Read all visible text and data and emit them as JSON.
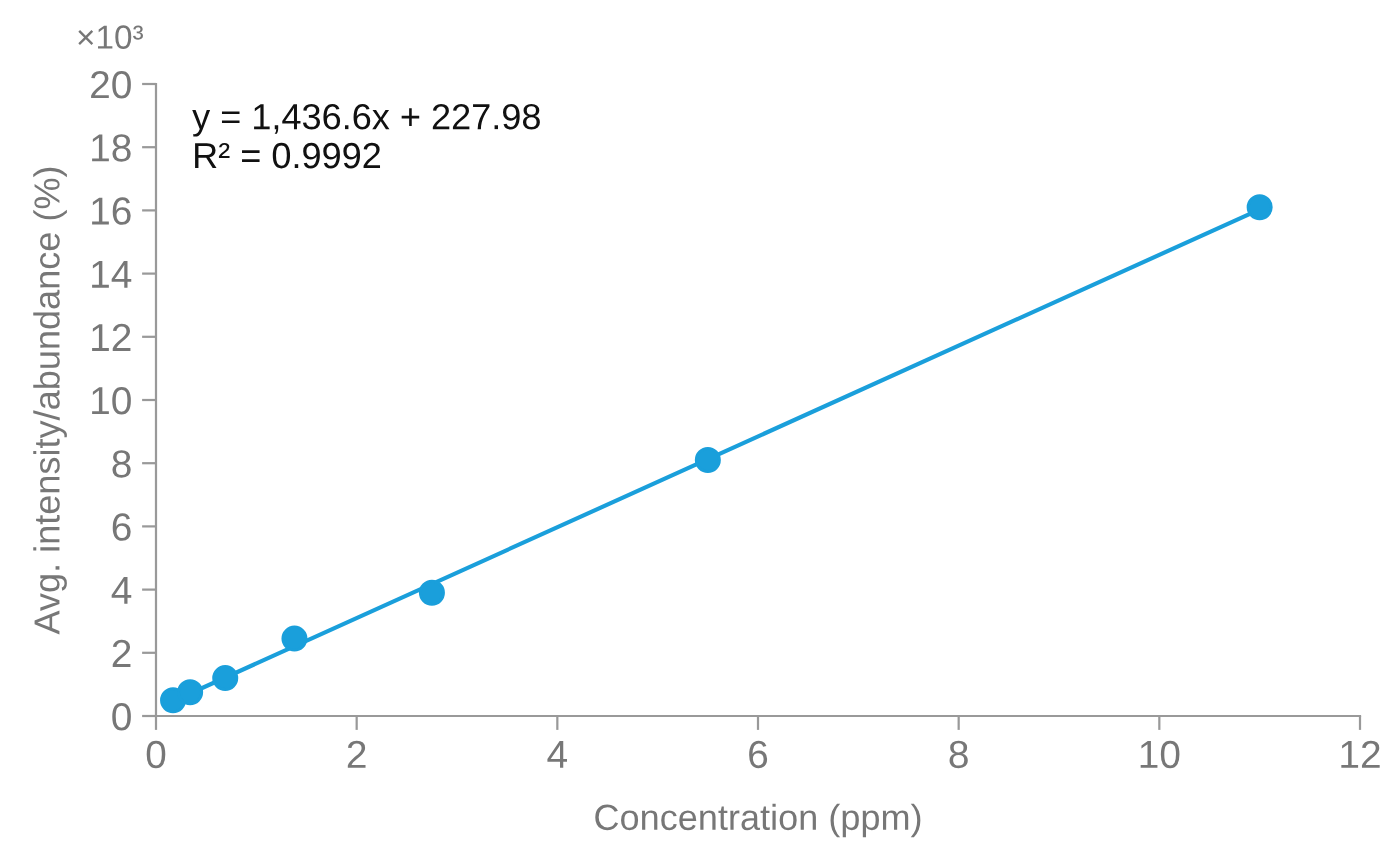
{
  "chart_data": {
    "type": "scatter",
    "xlabel": "Concentration (ppm)",
    "ylabel": "Avg. intensity/abundance (%)",
    "annotations": [
      "×10³",
      "y = 1,436.6x + 227.98\nR² = 0.9992"
    ],
    "xlim": [
      0,
      12
    ],
    "xticks": [
      0,
      2,
      4,
      6,
      8,
      10,
      12
    ],
    "ylim": [
      0,
      20
    ],
    "yticks": [
      0,
      2,
      4,
      6,
      8,
      10,
      12,
      14,
      16,
      18,
      20
    ],
    "series": [
      {
        "type": "line",
        "color": "#1a9fdb",
        "x": [
          0.17,
          11
        ],
        "values": [
          0.47,
          16.03
        ],
        "marker": "none",
        "line_style": "solid"
      },
      {
        "color": "#1a9fdb",
        "x": [
          0.17,
          0.34,
          0.69,
          1.38,
          2.75,
          5.5,
          11
        ],
        "values": [
          0.5,
          0.75,
          1.2,
          2.45,
          3.9,
          8.1,
          16.1
        ],
        "marker": "circle"
      }
    ]
  }
}
